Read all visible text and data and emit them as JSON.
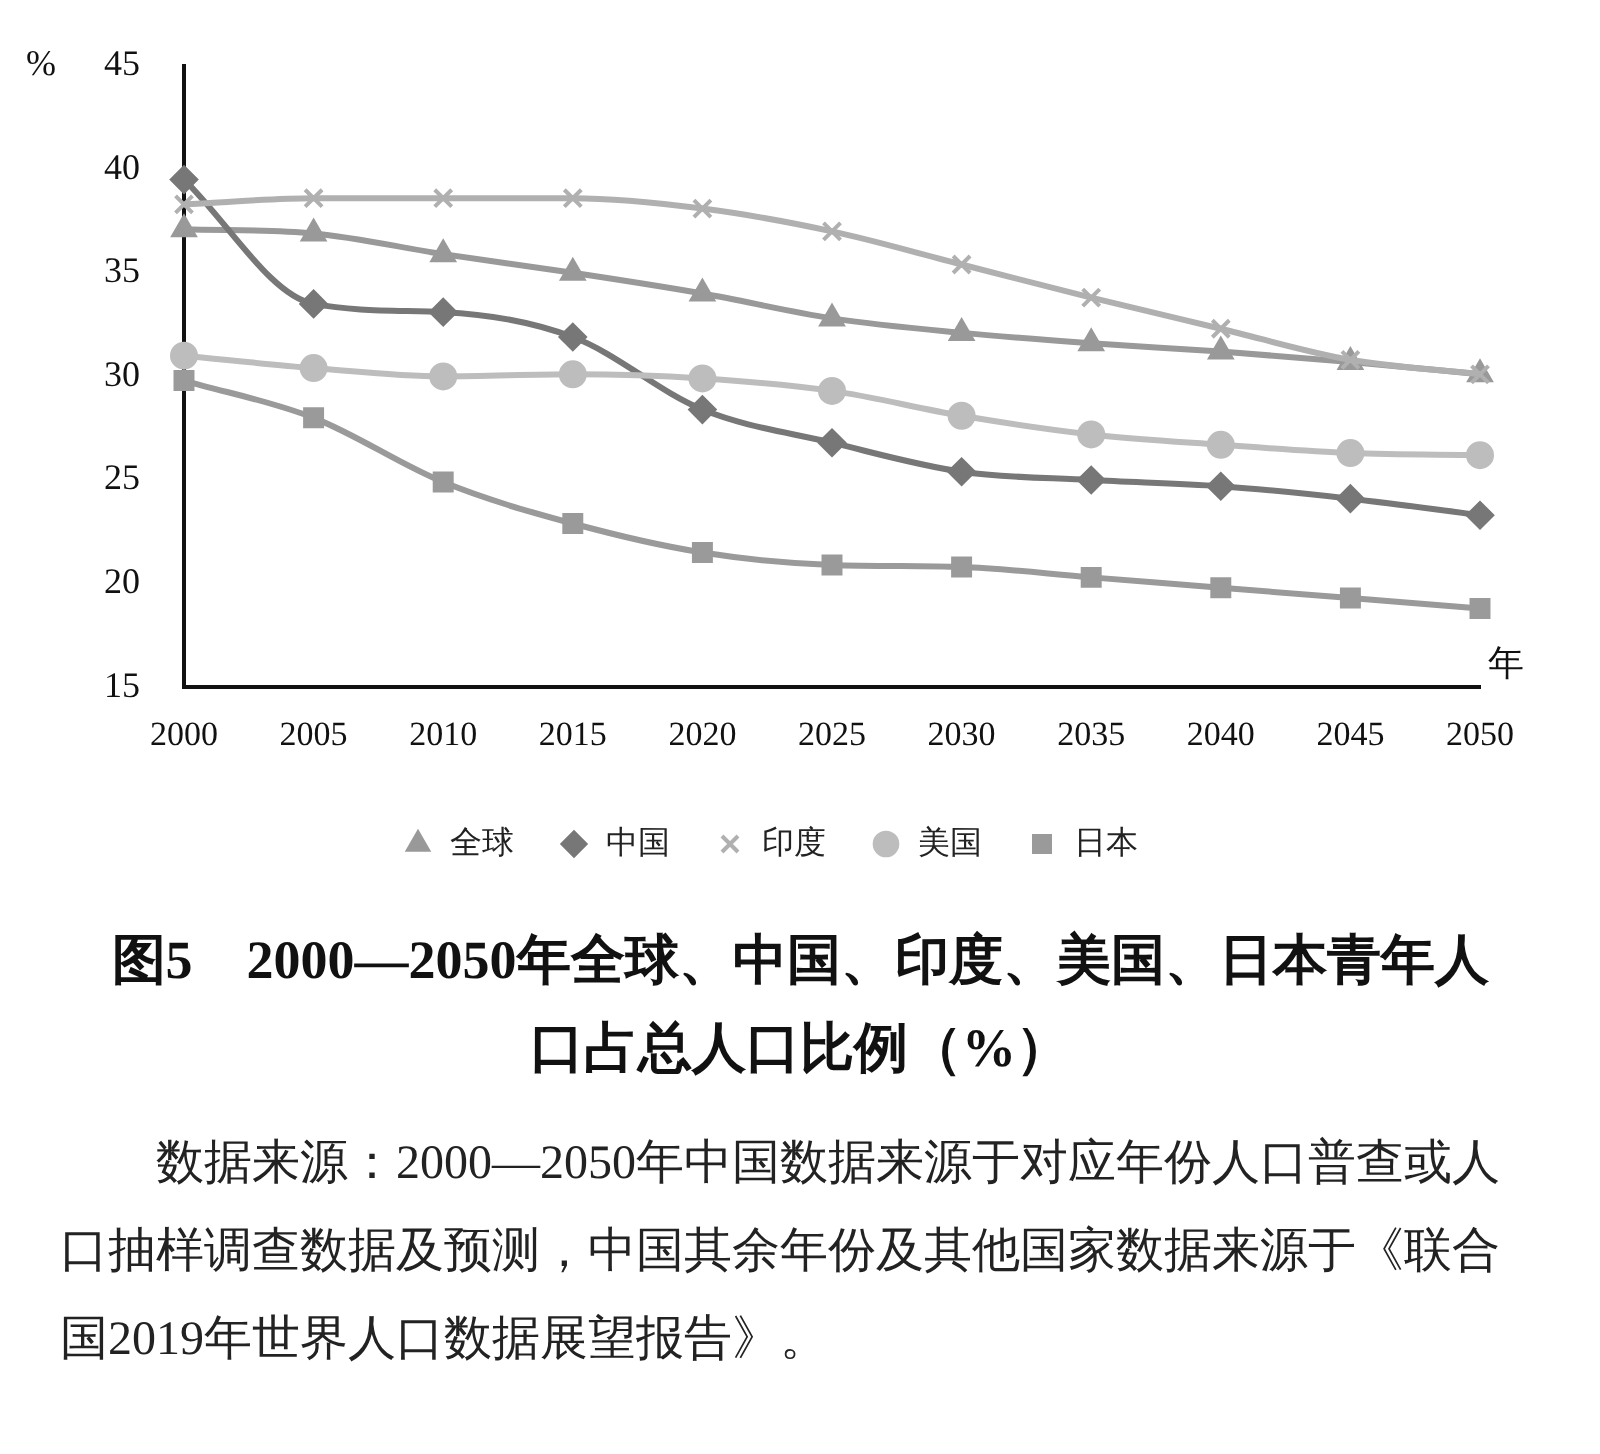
{
  "chart_data": {
    "type": "line",
    "title": "图5　2000—2050年全球、中国、印度、美国、日本青年人口占总人口比例（%）",
    "ylabel": "%",
    "xlabel": "年",
    "categories": [
      "2000",
      "2005",
      "2010",
      "2015",
      "2020",
      "2025",
      "2030",
      "2035",
      "2040",
      "2045",
      "2050"
    ],
    "series": [
      {
        "name": "全球",
        "color": "#999999",
        "marker": "triangle",
        "values": [
          37.1,
          36.9,
          35.9,
          35.0,
          34.0,
          32.8,
          32.1,
          31.6,
          31.2,
          30.7,
          30.1
        ]
      },
      {
        "name": "中国",
        "color": "#777777",
        "marker": "diamond",
        "values": [
          39.5,
          33.5,
          33.1,
          31.9,
          28.4,
          26.8,
          25.4,
          25.0,
          24.7,
          24.1,
          23.3
        ]
      },
      {
        "name": "印度",
        "color": "#b0b0b0",
        "marker": "cross",
        "values": [
          38.3,
          38.6,
          38.6,
          38.6,
          38.1,
          37.0,
          35.4,
          33.8,
          32.3,
          30.8,
          30.1
        ]
      },
      {
        "name": "美国",
        "color": "#bdbdbd",
        "marker": "circle",
        "values": [
          31.0,
          30.4,
          30.0,
          30.1,
          29.9,
          29.3,
          28.1,
          27.2,
          26.7,
          26.3,
          26.2
        ]
      },
      {
        "name": "日本",
        "color": "#9a9a9a",
        "marker": "square",
        "values": [
          29.8,
          28.0,
          24.9,
          22.9,
          21.5,
          20.9,
          20.8,
          20.3,
          19.8,
          19.3,
          18.8
        ]
      }
    ],
    "ylim": [
      15,
      45
    ],
    "yticks": [
      15,
      20,
      25,
      30,
      35,
      40,
      45
    ],
    "grid": false,
    "legend": "bottom",
    "line_style": "solid",
    "annotations": [
      "数据来源：2000—2050年中国数据来源于对应年份人口普查或人口抽样调查数据及预测，中国其余年份及其他国家数据来源于《联合国2019年世界人口数据展望报告》。"
    ]
  }
}
